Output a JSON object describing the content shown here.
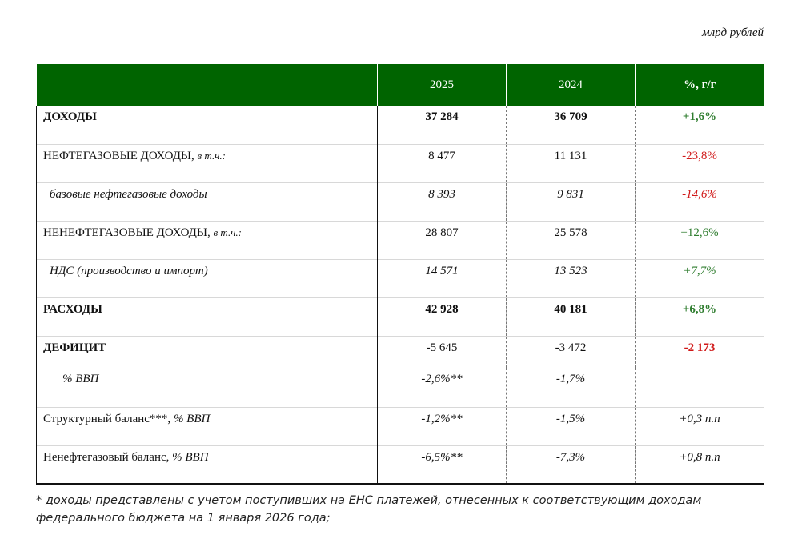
{
  "unit_label": "млрд рублей",
  "header": {
    "col_2025": "2025",
    "col_2024": "2024",
    "col_pct": "%, г/г"
  },
  "rows": [
    {
      "label": "ДОХОДЫ",
      "note": "",
      "v2025": "37 284",
      "v2024": "36 709",
      "pct": "+1,6%"
    },
    {
      "label": "НЕФТЕГАЗОВЫЕ ДОХОДЫ, ",
      "note": "в т.ч.:",
      "v2025": "8 477",
      "v2024": "11 131",
      "pct": "-23,8%"
    },
    {
      "label": "базовые нефтегазовые доходы",
      "note": "",
      "v2025": "8 393",
      "v2024": "9 831",
      "pct": "-14,6%"
    },
    {
      "label": "НЕНЕФТЕГАЗОВЫЕ ДОХОДЫ, ",
      "note": "в т.ч.:",
      "v2025": "28 807",
      "v2024": "25 578",
      "pct": "+12,6%"
    },
    {
      "label": "НДС (производство и импорт)",
      "note": "",
      "v2025": "14 571",
      "v2024": "13 523",
      "pct": "+7,7%"
    },
    {
      "label": "РАСХОДЫ",
      "note": "",
      "v2025": "42 928",
      "v2024": "40 181",
      "pct": "+6,8%"
    },
    {
      "label": "ДЕФИЦИТ",
      "note": "",
      "v2025": "-5 645",
      "v2024": "-3 472",
      "pct": "-2 173"
    },
    {
      "label": "% ВВП",
      "note": "",
      "v2025": "-2,6%**",
      "v2024": "-1,7%",
      "pct": ""
    },
    {
      "label": "Структурный баланс***, ",
      "note": "% ВВП",
      "v2025": "-1,2%**",
      "v2024": "-1,5%",
      "pct": "+0,3 п.п"
    },
    {
      "label": "Ненефтегазовый баланс, ",
      "note": "% ВВП",
      "v2025": "-6,5%**",
      "v2024": "-7,3%",
      "pct": "+0,8 п.п"
    }
  ],
  "footnote": {
    "line1": "* доходы представлены с учетом поступивших на ЕНС платежей, отнесенных к соответствующим доходам",
    "line2": "федерального бюджета на 1 января 2026 года;"
  }
}
